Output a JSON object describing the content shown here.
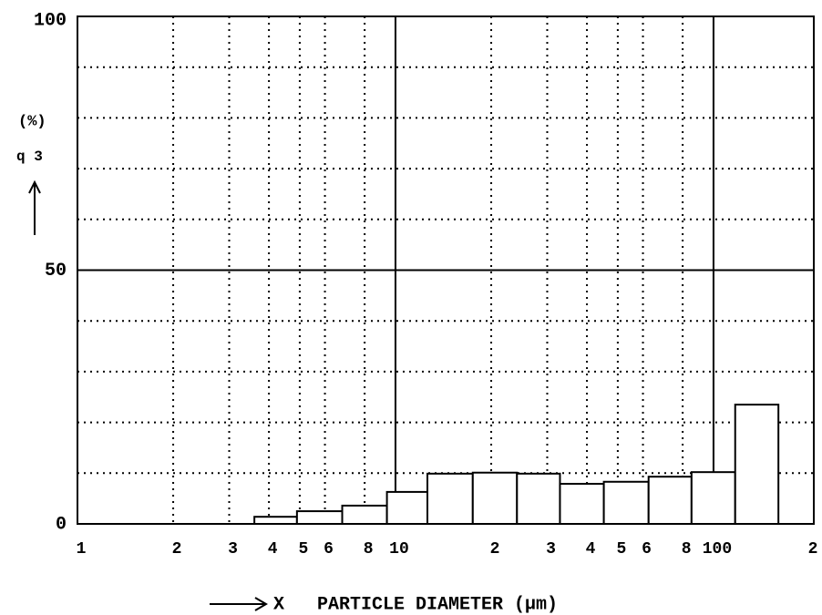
{
  "chart_data": {
    "type": "histogram",
    "y_unit": "(%)",
    "y_label": "q 3",
    "x_label": "X   PARTICLE DIAMETER (µm)",
    "bins": [
      3.6,
      4.9,
      6.8,
      9.4,
      12.6,
      17.5,
      24.1,
      32.9,
      45.2,
      62.5,
      85.3,
      117,
      160
    ],
    "values": [
      1.4,
      2.5,
      3.6,
      6.3,
      9.9,
      10.1,
      9.9,
      7.9,
      8.3,
      9.3,
      10.2,
      23.5
    ],
    "color": "#ffffff",
    "xscale": "log",
    "xlim": [
      1,
      200
    ],
    "ylim": [
      0,
      100
    ],
    "xticks": [
      1,
      2,
      3,
      4,
      5,
      6,
      8,
      10,
      {
        "value": 20,
        "label": "2"
      },
      {
        "value": 30,
        "label": "3"
      },
      {
        "value": 40,
        "label": "4"
      },
      {
        "value": 50,
        "label": "5"
      },
      {
        "value": 60,
        "label": "6"
      },
      {
        "value": 80,
        "label": "8"
      },
      100,
      {
        "value": 200,
        "label": "2"
      }
    ],
    "xmajor_grid": [
      10,
      100
    ],
    "yticks": [
      0,
      50,
      100
    ],
    "yminor_ticks": [
      10,
      20,
      30,
      40,
      60,
      70,
      80,
      90
    ],
    "grid": true
  }
}
